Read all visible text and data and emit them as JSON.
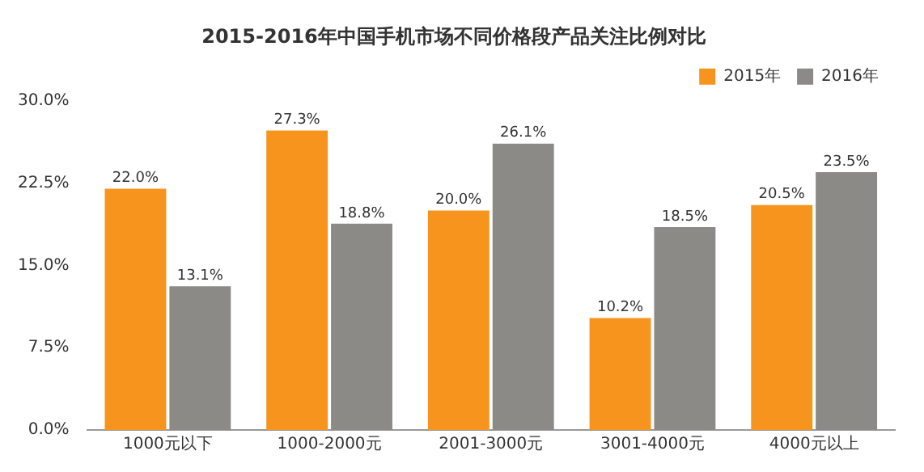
{
  "chart_data": {
    "type": "bar",
    "title": "2015-2016年中国手机市场不同价格段产品关注比例对比",
    "categories": [
      "1000元以下",
      "1000-2000元",
      "2001-3000元",
      "3001-4000元",
      "4000元以上"
    ],
    "series": [
      {
        "name": "2015年",
        "color": "#f7941d",
        "values": [
          22.0,
          27.3,
          20.0,
          10.2,
          20.5
        ],
        "value_labels": [
          "22.0%",
          "27.3%",
          "20.0%",
          "10.2%",
          "20.5%"
        ]
      },
      {
        "name": "2016年",
        "color": "#8c8a86",
        "values": [
          13.1,
          18.8,
          26.1,
          18.5,
          23.5
        ],
        "value_labels": [
          "13.1%",
          "18.8%",
          "26.1%",
          "18.5%",
          "23.5%"
        ]
      }
    ],
    "ylim": [
      0,
      30
    ],
    "yticks": [
      {
        "value": 0,
        "label": "0.0%"
      },
      {
        "value": 7.5,
        "label": "7.5%"
      },
      {
        "value": 15,
        "label": "15.0%"
      },
      {
        "value": 22.5,
        "label": "22.5%"
      },
      {
        "value": 30,
        "label": "30.0%"
      }
    ],
    "grid": false,
    "legend": "top right"
  }
}
